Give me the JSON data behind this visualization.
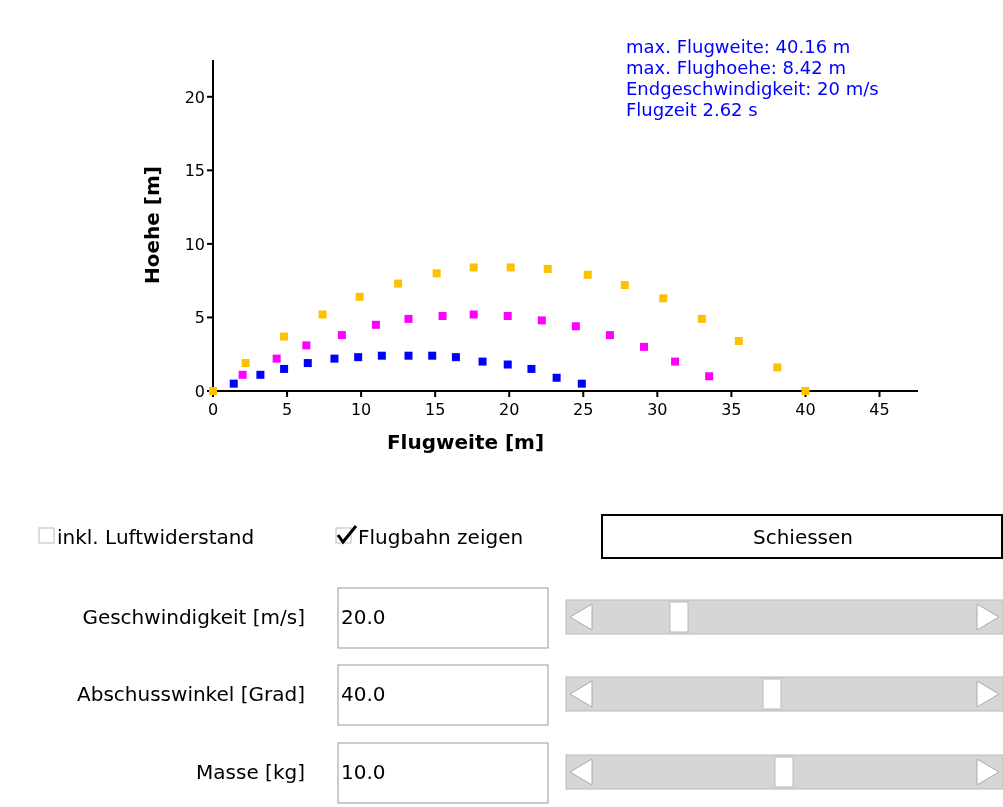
{
  "chart_data": [
    {
      "type": "scatter",
      "xlabel": "Flugweite [m]",
      "ylabel": "Hoehe [m]",
      "marker": "square",
      "grid": false,
      "xlim": [
        0,
        47.6
      ],
      "ylim": [
        0,
        22.5
      ],
      "xticks": [
        0,
        5,
        10,
        15,
        20,
        25,
        30,
        35,
        40,
        45
      ],
      "yticks": [
        0,
        5,
        10,
        15,
        20
      ],
      "annotations": [
        "max. Flugweite: 40.16 m",
        "max. Flughoehe: 8.42 m",
        "Endgeschwindigkeit: 20 m/s",
        "Flugzeit 2.62 s"
      ],
      "series": [
        {
          "color": "#0000ff",
          "x": [
            1.4,
            3.2,
            4.8,
            6.4,
            8.2,
            9.8,
            11.4,
            13.2,
            14.8,
            16.4,
            18.2,
            19.9,
            21.5,
            23.2,
            24.9
          ],
          "values": [
            0.5,
            1.1,
            1.5,
            1.9,
            2.2,
            2.3,
            2.4,
            2.4,
            2.4,
            2.3,
            2.0,
            1.8,
            1.5,
            0.9,
            0.5
          ]
        },
        {
          "color": "#ff00ff",
          "x": [
            2.0,
            4.3,
            6.3,
            8.7,
            11.0,
            13.2,
            15.5,
            17.6,
            19.9,
            22.2,
            24.5,
            26.8,
            29.1,
            31.2,
            33.5
          ],
          "values": [
            1.1,
            2.2,
            3.1,
            3.8,
            4.5,
            4.9,
            5.1,
            5.2,
            5.1,
            4.8,
            4.4,
            3.8,
            3.0,
            2.0,
            1.0
          ]
        },
        {
          "color": "#ffc000",
          "x": [
            0,
            2.2,
            4.8,
            7.4,
            9.9,
            12.5,
            15.1,
            17.6,
            20.1,
            22.6,
            25.3,
            27.8,
            30.4,
            33.0,
            35.5,
            38.1,
            40.0
          ],
          "values": [
            0,
            1.9,
            3.7,
            5.2,
            6.4,
            7.3,
            8.0,
            8.4,
            8.4,
            8.3,
            7.9,
            7.2,
            6.3,
            4.9,
            3.4,
            1.6,
            0
          ]
        }
      ]
    },
    {
      "type": "other",
      "annotations": [
        "inkl. Luftwiderstand",
        "Flugbahn zeigen",
        "Schiessen",
        "Geschwindigkeit [m/s]",
        "20.0",
        "Abschusswinkel [Grad]",
        "40.0",
        "Masse [kg]",
        "10.0"
      ]
    }
  ]
}
